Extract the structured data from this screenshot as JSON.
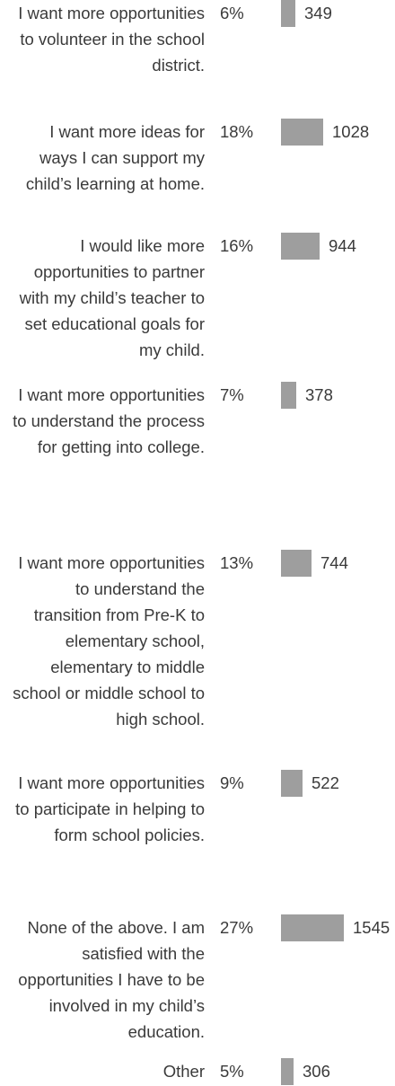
{
  "chart_data": {
    "type": "bar",
    "orientation": "horizontal",
    "grid": false,
    "legend": "none",
    "bar_color": "#9e9e9e",
    "text_color": "#3a3a3a",
    "rows": [
      {
        "category": "I want more opportunities to volunteer in the school district.",
        "percent": "6%",
        "value": 349
      },
      {
        "category": "I want more ideas for ways I can support my child’s learning at home.",
        "percent": "18%",
        "value": 1028
      },
      {
        "category": "I would like more opportunities to partner with my child’s teacher to set educational goals for my child.",
        "percent": "16%",
        "value": 944
      },
      {
        "category": "I want more opportunities to understand the process for getting into college.",
        "percent": "7%",
        "value": 378
      },
      {
        "category": "I want more opportunities to understand the transition from Pre-K to elementary school, elementary to middle school or middle school to high school.",
        "percent": "13%",
        "value": 744
      },
      {
        "category": "I want more opportunities to participate in helping to form school policies.",
        "percent": "9%",
        "value": 522
      },
      {
        "category": "None of the above. I am satisfied with the opportunities I have to be involved in my child’s education.",
        "percent": "27%",
        "value": 1545
      },
      {
        "category": "Other",
        "percent": "5%",
        "value": 306
      }
    ]
  }
}
